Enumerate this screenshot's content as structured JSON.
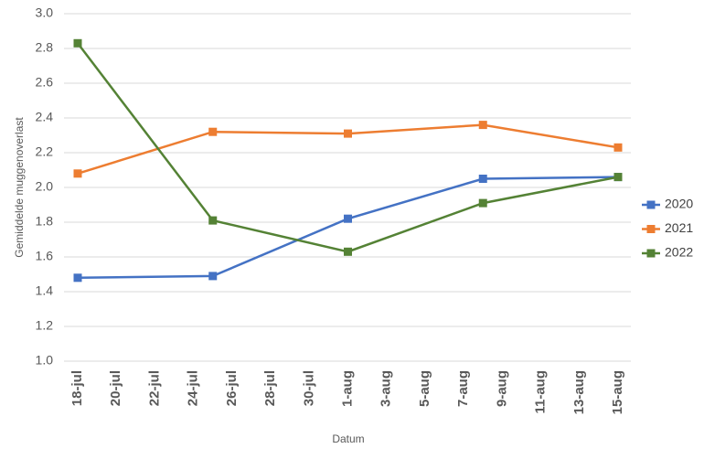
{
  "chart_data": {
    "type": "line",
    "y_label": "Gemiddelde muggenoverlast",
    "x_label": "Datum",
    "x": [
      "18-jul",
      "25-jul",
      "1-aug",
      "8-aug",
      "15-aug"
    ],
    "xlim": [
      "18-jul",
      "15-aug"
    ],
    "xticks": [
      "18-jul",
      "20-jul",
      "22-jul",
      "24-jul",
      "26-jul",
      "28-jul",
      "30-jul",
      "1-aug",
      "3-aug",
      "5-aug",
      "7-aug",
      "9-aug",
      "11-aug",
      "13-aug",
      "15-aug"
    ],
    "ylim": [
      1.0,
      3.0
    ],
    "yticks": [
      {
        "value": 1.0,
        "label": "1.0"
      },
      1.2,
      1.4,
      1.6,
      1.8,
      {
        "value": 2.0,
        "label": "2.0"
      },
      2.2,
      2.4,
      2.6,
      2.8,
      {
        "value": 3.0,
        "label": "3.0"
      }
    ],
    "grid": true,
    "legend": "right",
    "series": [
      {
        "name": "2020",
        "color": "#4472c4",
        "values": [
          1.48,
          1.49,
          1.82,
          2.05,
          2.06
        ]
      },
      {
        "name": "2021",
        "color": "#ed7d31",
        "values": [
          2.08,
          2.32,
          2.31,
          2.36,
          2.23
        ]
      },
      {
        "name": "2022",
        "color": "#548235",
        "values": [
          2.83,
          1.81,
          1.63,
          1.91,
          2.06
        ]
      }
    ]
  }
}
